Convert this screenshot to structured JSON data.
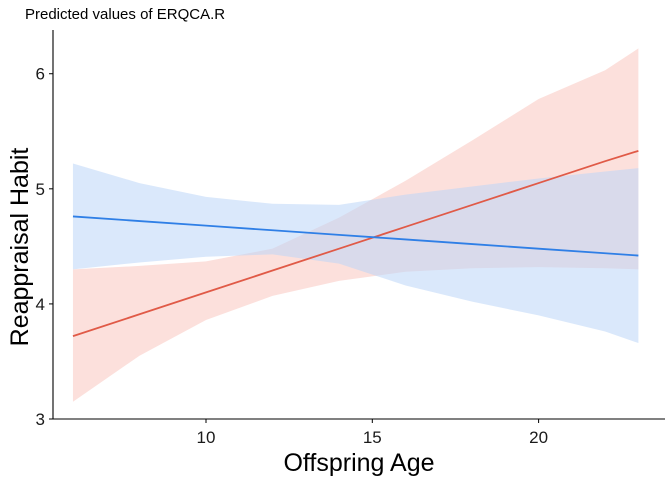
{
  "chart_data": {
    "type": "line",
    "title": "Predicted values of ERQCA.R",
    "xlabel": "Offspring Age",
    "ylabel": "Reappraisal Habit",
    "xlim": [
      5.4,
      23.8
    ],
    "ylim": [
      3.0,
      6.38
    ],
    "xticks": [
      10,
      15,
      20
    ],
    "yticks": [
      3,
      4,
      5,
      6
    ],
    "grid": false,
    "legend": "none",
    "series": [
      {
        "color": "#e05a47",
        "band_color": "#f9c7bf",
        "x": [
          6,
          8,
          10,
          12,
          14,
          16,
          18,
          20,
          22,
          23
        ],
        "y": [
          3.72,
          3.91,
          4.1,
          4.29,
          4.48,
          4.67,
          4.86,
          5.05,
          5.24,
          5.33
        ],
        "lower": [
          3.15,
          3.55,
          3.86,
          4.07,
          4.2,
          4.28,
          4.31,
          4.32,
          4.31,
          4.3
        ],
        "upper": [
          4.3,
          4.33,
          4.37,
          4.48,
          4.75,
          5.07,
          5.42,
          5.78,
          6.03,
          6.22
        ]
      },
      {
        "color": "#2f7fe6",
        "band_color": "#bcd5f8",
        "x": [
          6,
          8,
          10,
          12,
          14,
          16,
          18,
          20,
          22,
          23
        ],
        "y": [
          4.76,
          4.72,
          4.68,
          4.64,
          4.6,
          4.56,
          4.52,
          4.48,
          4.44,
          4.42
        ],
        "lower": [
          4.3,
          4.36,
          4.41,
          4.43,
          4.35,
          4.16,
          4.02,
          3.9,
          3.76,
          3.66
        ],
        "upper": [
          5.22,
          5.05,
          4.93,
          4.87,
          4.86,
          4.95,
          5.02,
          5.09,
          5.15,
          5.18
        ]
      }
    ]
  }
}
